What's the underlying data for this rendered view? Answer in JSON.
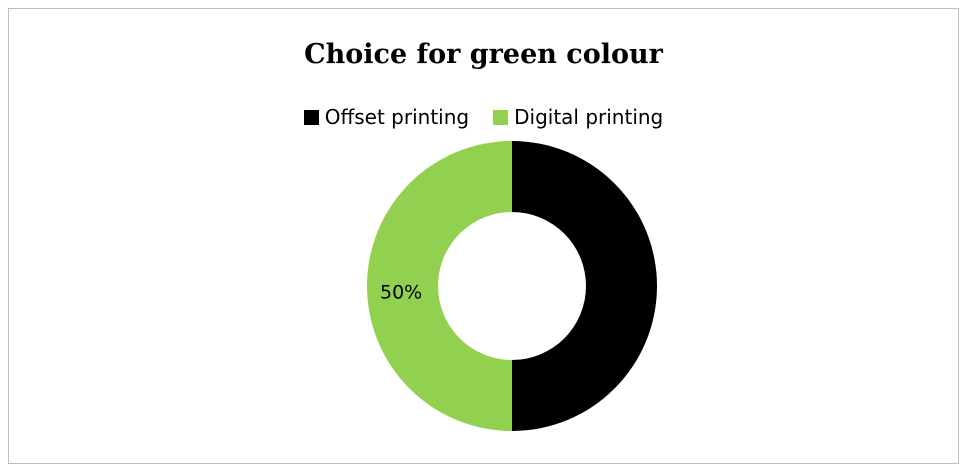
{
  "chart_data": {
    "type": "pie",
    "title": "Choice for green colour",
    "legend_position": "top",
    "slices": [
      {
        "label": "Offset printing",
        "value": 50,
        "color": "#000000"
      },
      {
        "label": "Digital printing",
        "value": 50,
        "color": "#92d050"
      }
    ],
    "data_labels": [
      "50%"
    ],
    "donut": true
  }
}
